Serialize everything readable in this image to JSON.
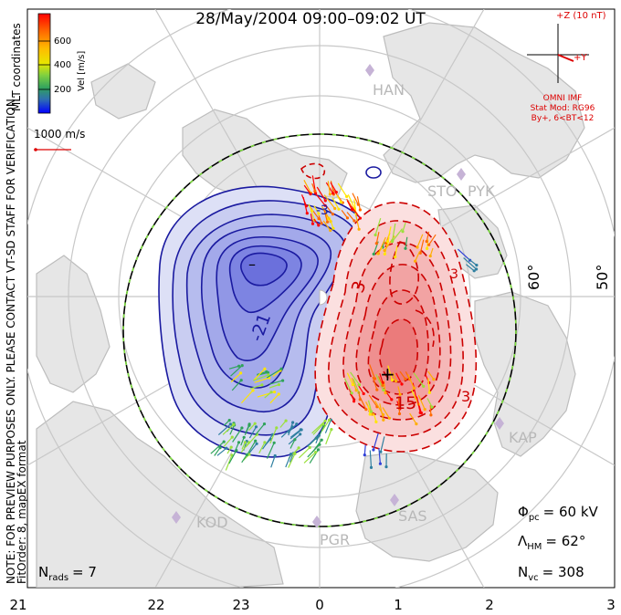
{
  "title": "28/May/2004 09:00–09:02 UT",
  "side_note": {
    "line1": "NOTE: FOR PREVIEW PURPOSES ONLY. PLEASE CONTACT VT-SD STAFF FOR VERIFICATION.",
    "line2": "FitOrder: 8, mapEX format"
  },
  "mlt_label": "MLT coordinates",
  "colorbar": {
    "label": "Vel [m/s]",
    "ticks": [
      "600",
      "400",
      "200"
    ],
    "colors": [
      "#ff0000",
      "#ff6a00",
      "#ffae00",
      "#ffe600",
      "#9be03c",
      "#2fa35a",
      "#2f7fa0",
      "#3040d8",
      "#0000ff"
    ]
  },
  "ref_vector": {
    "label": "1000 m/s",
    "color": "#dd0000"
  },
  "imf": {
    "z_label": "+Z (10 nT)",
    "y_label": "+Y",
    "source": "OMNI IMF",
    "stat_mod": "Stat Mod: RG96",
    "condition": "By+, 6<BT<12",
    "color": "#dd0000"
  },
  "stations": [
    {
      "name": "HAN"
    },
    {
      "name": "STO"
    },
    {
      "name": "PYK"
    },
    {
      "name": "KAP"
    },
    {
      "name": "SAS"
    },
    {
      "name": "PGR"
    },
    {
      "name": "KOD"
    }
  ],
  "latitude_labels": [
    "60°",
    "50°"
  ],
  "mlt_ticks": [
    "21",
    "22",
    "23",
    "0",
    "1",
    "2",
    "3"
  ],
  "contour_labels": [
    "-21",
    "-3",
    "3",
    "15",
    "3",
    "3"
  ],
  "potential_markers": {
    "min": "–",
    "max": "+"
  },
  "stats": {
    "phi_pc": {
      "symbol": "Φ",
      "sub": "pc",
      "value": "= 60 kV"
    },
    "lambda_hm": {
      "symbol": "Λ",
      "sub": "HM",
      "value": "= 62°"
    },
    "n_vc": {
      "symbol": "N",
      "sub": "vc",
      "value": "= 308"
    },
    "n_rads": {
      "symbol": "N",
      "sub": "rads",
      "value": "= 7"
    }
  },
  "colors": {
    "negative_cell": "#5060e0",
    "negative_line": "#1a1aa0",
    "positive_cell": "#f06060",
    "positive_line": "#cc0000",
    "grid": "#c8c8c8",
    "land": "#d7d7d7"
  }
}
